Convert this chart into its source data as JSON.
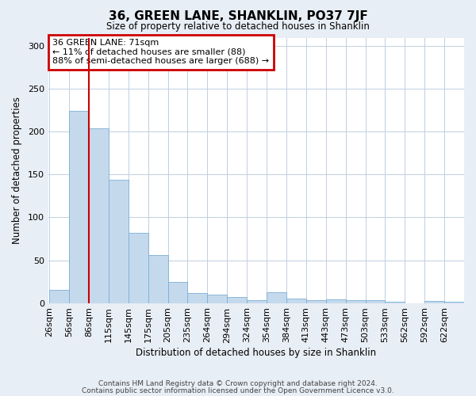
{
  "title": "36, GREEN LANE, SHANKLIN, PO37 7JF",
  "subtitle": "Size of property relative to detached houses in Shanklin",
  "xlabel": "Distribution of detached houses by size in Shanklin",
  "ylabel": "Number of detached properties",
  "bar_labels": [
    "26sqm",
    "56sqm",
    "86sqm",
    "115sqm",
    "145sqm",
    "175sqm",
    "205sqm",
    "235sqm",
    "264sqm",
    "294sqm",
    "324sqm",
    "354sqm",
    "384sqm",
    "413sqm",
    "443sqm",
    "473sqm",
    "503sqm",
    "533sqm",
    "562sqm",
    "592sqm",
    "622sqm"
  ],
  "bar_values": [
    15,
    224,
    204,
    144,
    82,
    56,
    25,
    12,
    10,
    7,
    3,
    13,
    5,
    3,
    4,
    3,
    3,
    1,
    0,
    2,
    1
  ],
  "bar_color": "#c5d9ed",
  "bar_edge_color": "#7bafd4",
  "ylim": [
    0,
    310
  ],
  "yticks": [
    0,
    50,
    100,
    150,
    200,
    250,
    300
  ],
  "property_line_color": "#cc0000",
  "annotation_text": "36 GREEN LANE: 71sqm\n← 11% of detached houses are smaller (88)\n88% of semi-detached houses are larger (688) →",
  "annotation_box_color": "#cc0000",
  "footer_line1": "Contains HM Land Registry data © Crown copyright and database right 2024.",
  "footer_line2": "Contains public sector information licensed under the Open Government Licence v3.0.",
  "background_color": "#e8eef5",
  "plot_background_color": "#ffffff",
  "grid_color": "#c0cfe0"
}
